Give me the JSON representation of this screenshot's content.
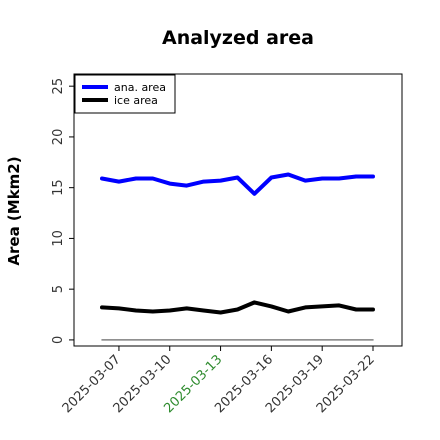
{
  "chart_data": {
    "type": "line",
    "title": "Analyzed area",
    "xlabel": "",
    "ylabel": "Area (Mkm2)",
    "ylim": [
      -0.6,
      26.2
    ],
    "x_tick_labels": [
      "2025-03-07",
      "2025-03-10",
      "2025-03-13",
      "2025-03-16",
      "2025-03-19",
      "2025-03-22"
    ],
    "x_tick_colors": [
      "#333333",
      "#333333",
      "#2e8b2e",
      "#333333",
      "#333333",
      "#333333"
    ],
    "y_ticks": [
      0,
      5,
      10,
      15,
      20,
      25
    ],
    "y_tick_labels": [
      "0",
      "5",
      "10",
      "15",
      "20",
      "25"
    ],
    "x": [
      "2025-03-06",
      "2025-03-07",
      "2025-03-08",
      "2025-03-09",
      "2025-03-10",
      "2025-03-11",
      "2025-03-12",
      "2025-03-13",
      "2025-03-14",
      "2025-03-15",
      "2025-03-16",
      "2025-03-17",
      "2025-03-18",
      "2025-03-19",
      "2025-03-20",
      "2025-03-21",
      "2025-03-22"
    ],
    "series": [
      {
        "name": "ana. area",
        "color": "#0000ff",
        "values": [
          15.9,
          15.6,
          15.9,
          15.9,
          15.4,
          15.2,
          15.6,
          15.7,
          16.0,
          14.4,
          16.0,
          16.3,
          15.7,
          15.9,
          15.9,
          16.1,
          16.1
        ]
      },
      {
        "name": "ice area",
        "color": "#000000",
        "values": [
          3.2,
          3.1,
          2.9,
          2.8,
          2.9,
          3.1,
          2.9,
          2.7,
          3.0,
          3.7,
          3.3,
          2.8,
          3.2,
          3.3,
          3.4,
          3.0,
          3.0
        ]
      },
      {
        "name": "",
        "color": "#808080",
        "values": [
          0,
          0,
          0,
          0,
          0,
          0,
          0,
          0,
          0,
          0,
          0,
          0,
          0,
          0,
          0,
          0,
          0
        ]
      }
    ],
    "grid": false,
    "legend": "top-left"
  }
}
